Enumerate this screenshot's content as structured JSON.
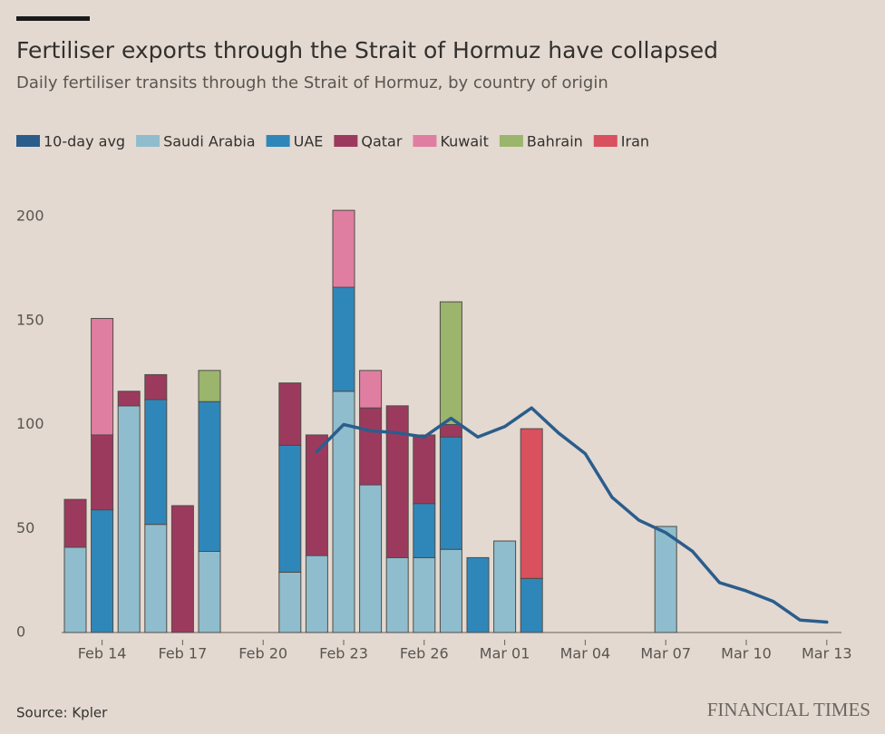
{
  "chart_data": {
    "type": "bar",
    "stacked": true,
    "title": "Fertiliser exports through the Strait of Hormuz have collapsed",
    "subtitle": "Daily fertiliser transits through the Strait of Hormuz, by country of origin",
    "source": "Source: Kpler",
    "brand": "FINANCIAL TIMES",
    "categories": [
      null,
      "Feb 14",
      null,
      null,
      "Feb 17",
      null,
      null,
      "Feb 20",
      null,
      null,
      "Feb 23",
      null,
      null,
      "Feb 26",
      null,
      null,
      "Mar 01",
      null,
      null,
      "Mar 04",
      null,
      null,
      "Mar 07",
      null,
      null,
      "Mar 10",
      null,
      null,
      "Mar 13"
    ],
    "ylim": [
      0,
      205
    ],
    "yticks": [
      0,
      50,
      100,
      150,
      200
    ],
    "grid": false,
    "series": [
      {
        "name": "10-day avg",
        "type": "line",
        "color": "#2b5d8c",
        "values": [
          null,
          null,
          null,
          null,
          null,
          null,
          null,
          null,
          null,
          87,
          100,
          97,
          96,
          94,
          103,
          94,
          99,
          108,
          96,
          86,
          65,
          54,
          48,
          39,
          24,
          20,
          15,
          6,
          5
        ]
      },
      {
        "name": "Saudi Arabia",
        "color": "#8fbdcd",
        "values": [
          41,
          0,
          109,
          52,
          0,
          39,
          0,
          0,
          29,
          37,
          116,
          71,
          36,
          36,
          40,
          0,
          44,
          0,
          0,
          0,
          0,
          0,
          51,
          0,
          0,
          0,
          0,
          0,
          0
        ]
      },
      {
        "name": "UAE",
        "color": "#2f87b9",
        "values": [
          0,
          59,
          0,
          60,
          0,
          72,
          0,
          0,
          61,
          0,
          50,
          0,
          0,
          26,
          54,
          36,
          0,
          26,
          0,
          0,
          0,
          0,
          0,
          0,
          0,
          0,
          0,
          0,
          0
        ]
      },
      {
        "name": "Qatar",
        "color": "#9c3a5e",
        "values": [
          23,
          36,
          7,
          12,
          61,
          0,
          0,
          0,
          30,
          58,
          0,
          37,
          73,
          33,
          6,
          0,
          0,
          0,
          0,
          0,
          0,
          0,
          0,
          0,
          0,
          0,
          0,
          0,
          0
        ]
      },
      {
        "name": "Kuwait",
        "color": "#e07ea1",
        "values": [
          0,
          56,
          0,
          0,
          0,
          0,
          0,
          0,
          0,
          0,
          37,
          18,
          0,
          0,
          0,
          0,
          0,
          0,
          0,
          0,
          0,
          0,
          0,
          0,
          0,
          0,
          0,
          0,
          0
        ]
      },
      {
        "name": "Bahrain",
        "color": "#9bb56c",
        "values": [
          0,
          0,
          0,
          0,
          0,
          15,
          0,
          0,
          0,
          0,
          0,
          0,
          0,
          0,
          59,
          0,
          0,
          0,
          0,
          0,
          0,
          0,
          0,
          0,
          0,
          0,
          0,
          0,
          0
        ]
      },
      {
        "name": "Iran",
        "color": "#d9505f",
        "values": [
          0,
          0,
          0,
          0,
          0,
          0,
          0,
          0,
          0,
          0,
          0,
          0,
          0,
          0,
          0,
          0,
          0,
          72,
          0,
          0,
          0,
          0,
          0,
          0,
          0,
          0,
          0,
          0,
          0
        ]
      }
    ]
  }
}
